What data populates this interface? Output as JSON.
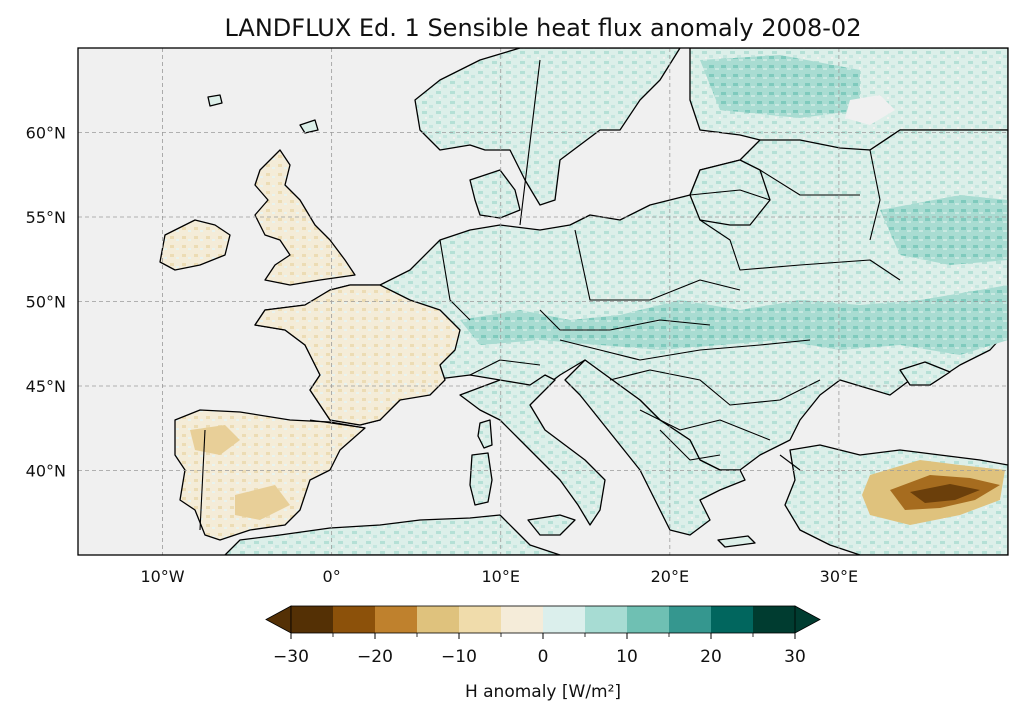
{
  "title": "LANDFLUX Ed. 1 Sensible heat flux anomaly 2008-02",
  "map": {
    "lon_range": [
      -15,
      40
    ],
    "lat_range": [
      35,
      65
    ],
    "lon_ticks": [
      {
        "value": -10,
        "label": "10°W"
      },
      {
        "value": 0,
        "label": "0°"
      },
      {
        "value": 10,
        "label": "10°E"
      },
      {
        "value": 20,
        "label": "20°E"
      },
      {
        "value": 30,
        "label": "30°E"
      }
    ],
    "lat_ticks": [
      {
        "value": 40,
        "label": "40°N"
      },
      {
        "value": 45,
        "label": "45°N"
      },
      {
        "value": 50,
        "label": "50°N"
      },
      {
        "value": 55,
        "label": "55°N"
      },
      {
        "value": 60,
        "label": "60°N"
      }
    ],
    "gridlines": true,
    "ocean_color": "#f0f0f0",
    "coastline_color": "#000000"
  },
  "colorbar": {
    "label": "H anomaly [W/m²]",
    "ticks": [
      "−30",
      "−20",
      "−10",
      "0",
      "10",
      "20",
      "30"
    ],
    "tick_values": [
      -30,
      -20,
      -10,
      0,
      10,
      20,
      30
    ],
    "levels": [
      -30,
      -25,
      -20,
      -15,
      -10,
      -5,
      0,
      5,
      10,
      15,
      20,
      25,
      30
    ],
    "colors": [
      "#543005",
      "#8c510a",
      "#bf812d",
      "#dfc27d",
      "#f0dcab",
      "#f5ecd9",
      "#dbefec",
      "#a7dcd3",
      "#6fc0b3",
      "#35978f",
      "#01665e",
      "#003c30"
    ],
    "extend": "both"
  }
}
